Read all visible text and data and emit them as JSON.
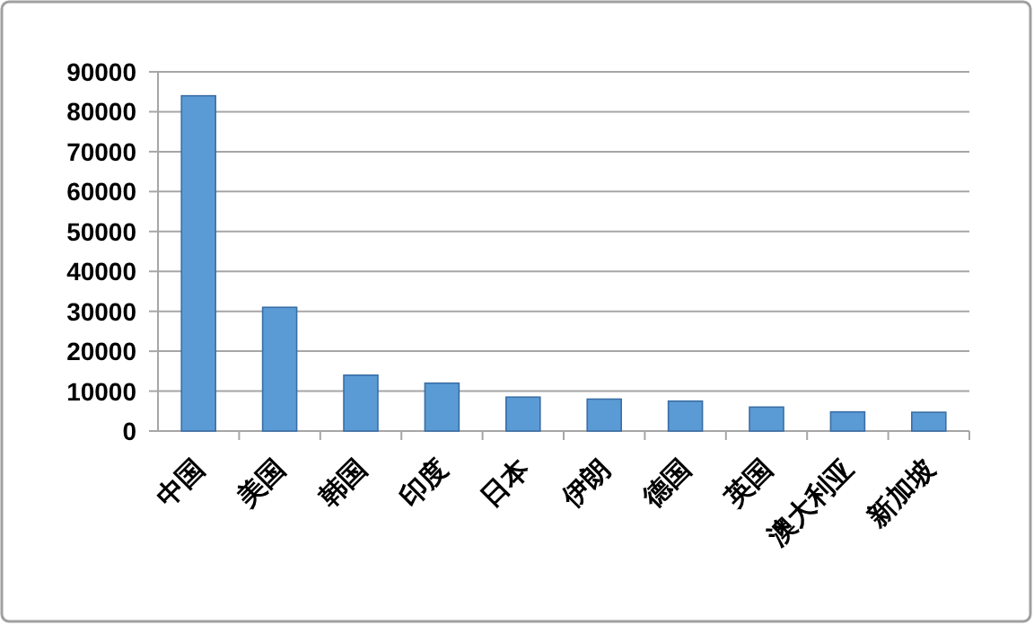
{
  "chart_data": {
    "type": "bar",
    "categories": [
      "中国",
      "美国",
      "韩国",
      "印度",
      "日本",
      "伊朗",
      "德国",
      "英国",
      "澳大利亚",
      "新加坡"
    ],
    "values": [
      84000,
      31000,
      14000,
      12000,
      8500,
      8000,
      7500,
      6000,
      4800,
      4700
    ],
    "color": "#5b9bd5",
    "ylim": [
      0,
      90000
    ],
    "yticks": [
      0,
      10000,
      20000,
      30000,
      40000,
      50000,
      60000,
      70000,
      80000,
      90000
    ],
    "grid": "y"
  }
}
